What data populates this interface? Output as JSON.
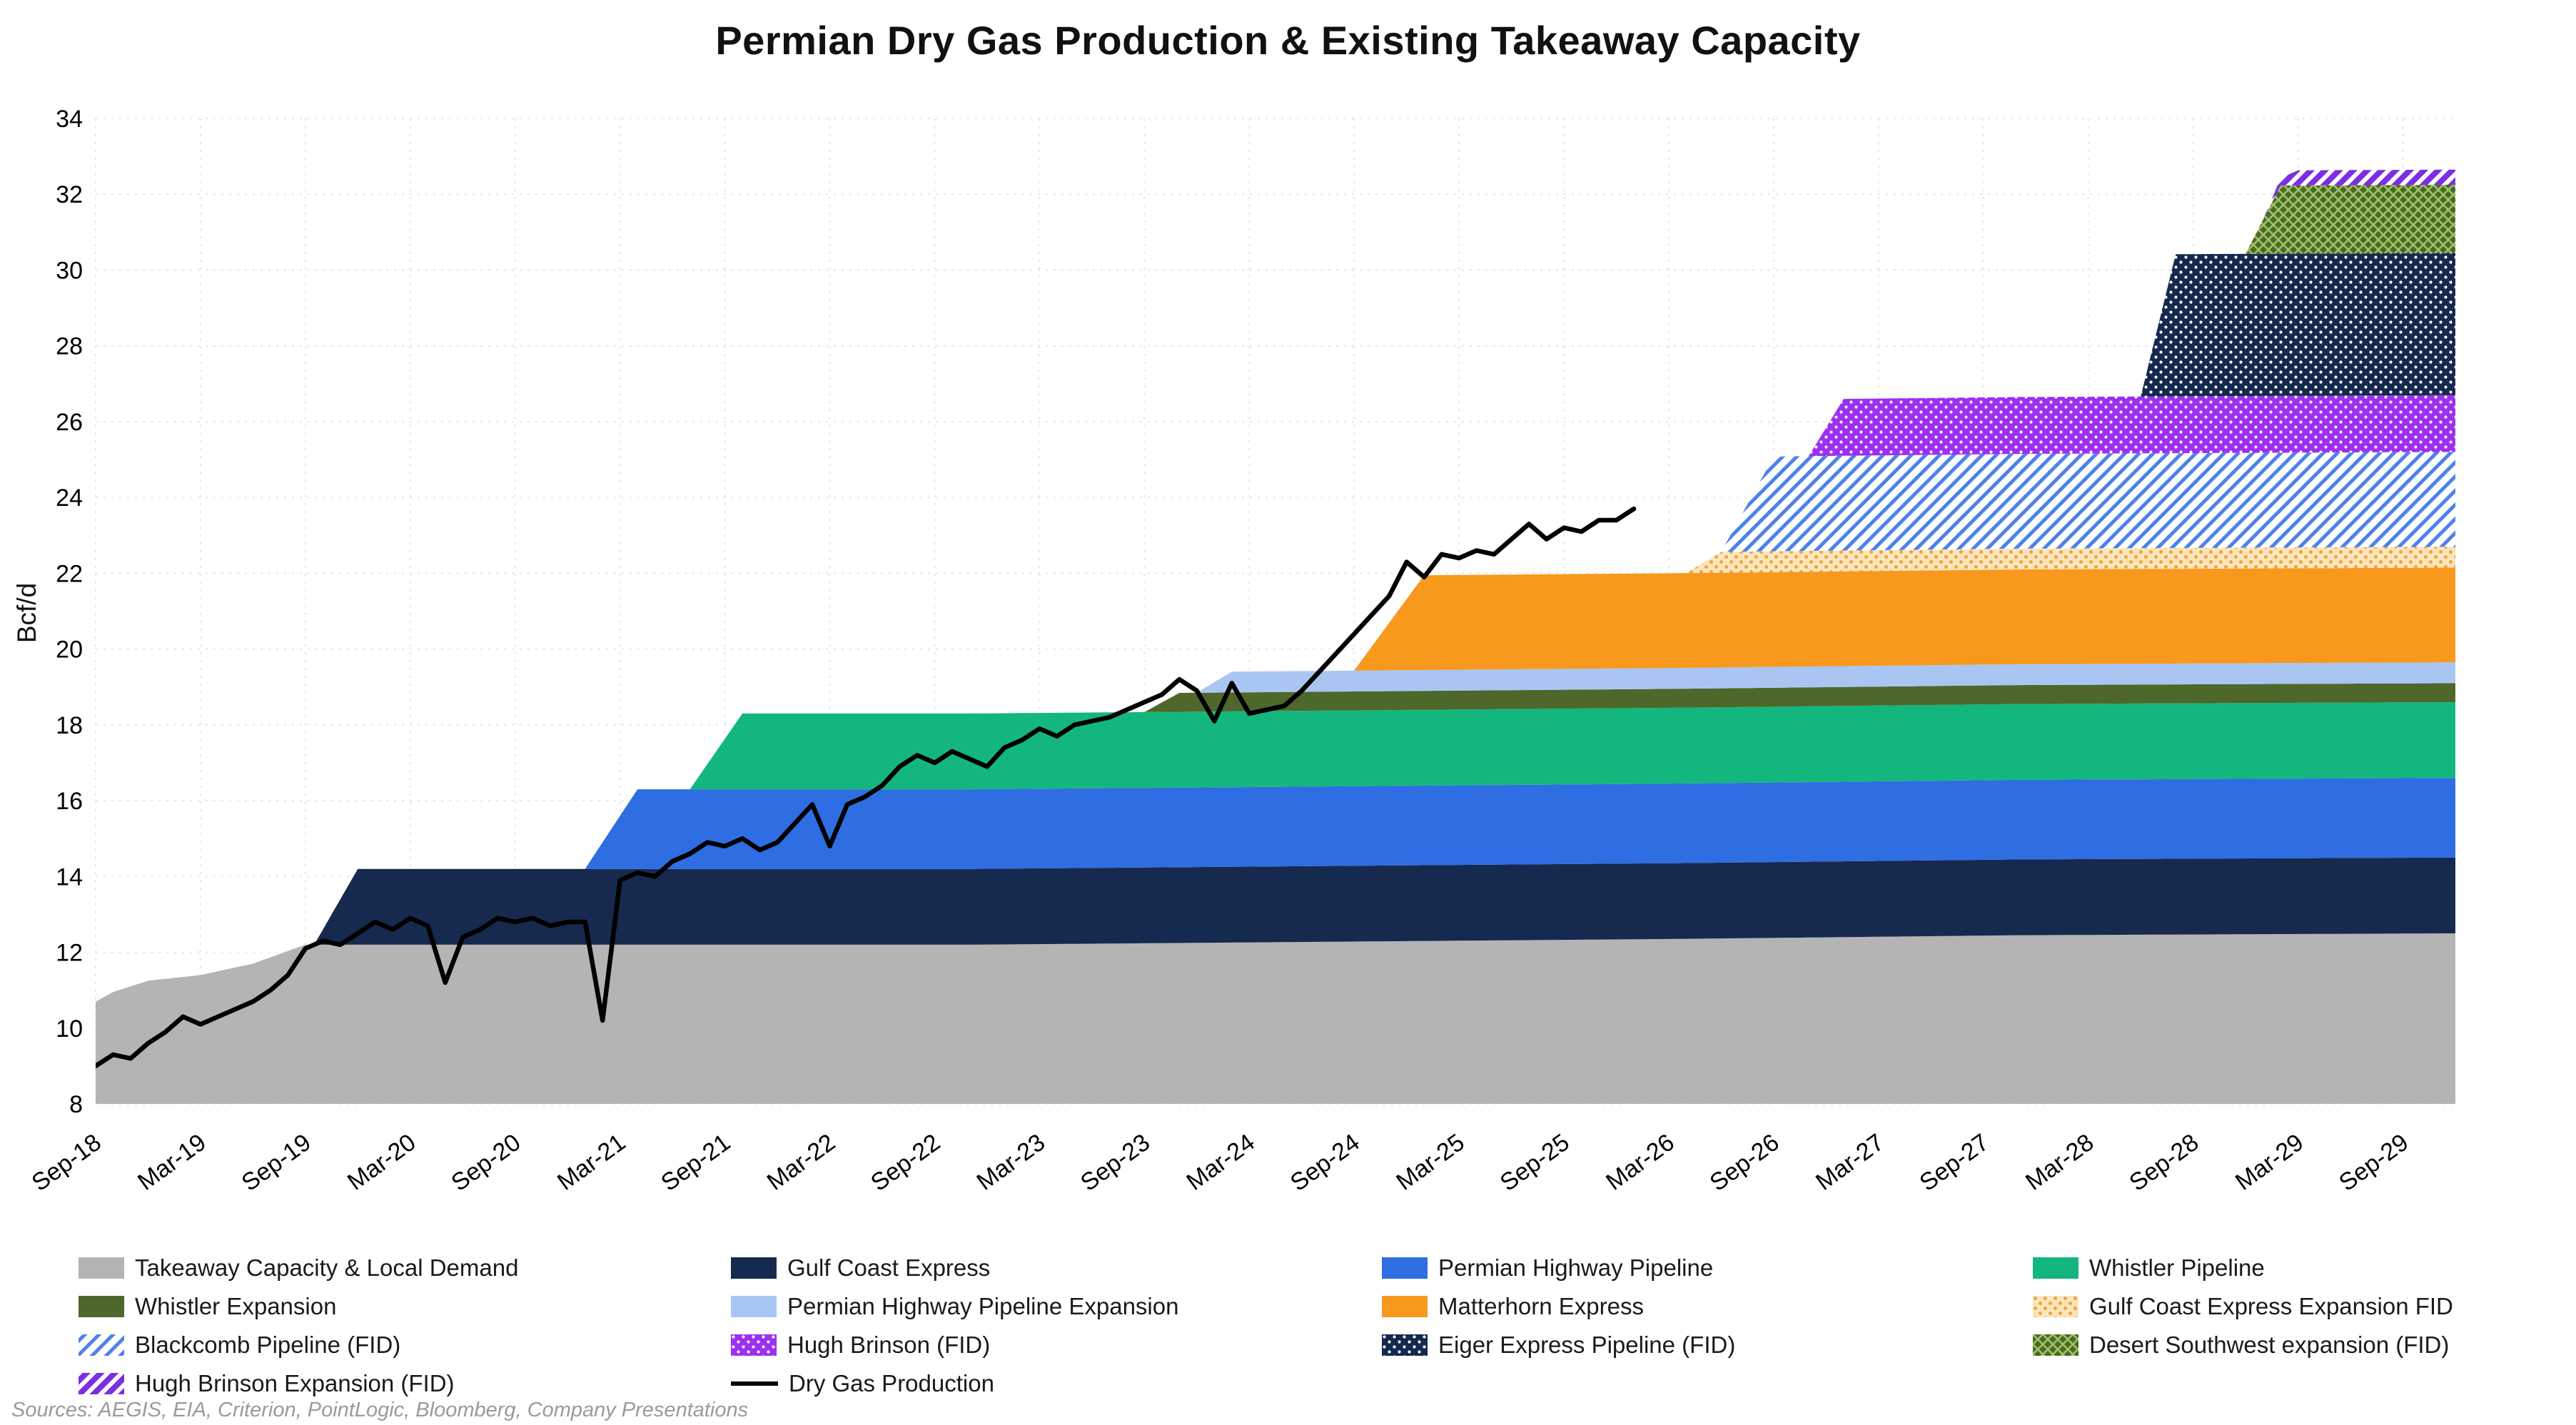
{
  "title": "Permian Dry Gas Production & Existing Takeaway Capacity",
  "source_note": "Sources: AEGIS, EIA, Criterion, PointLogic, Bloomberg, Company Presentations",
  "chart_data": {
    "type": "area",
    "title": "Permian Dry Gas Production & Existing Takeaway Capacity",
    "ylabel": "Bcf/d",
    "ylim": [
      8,
      34
    ],
    "yticks": [
      8,
      10,
      12,
      14,
      16,
      18,
      20,
      22,
      24,
      26,
      28,
      30,
      32,
      34
    ],
    "grid": "dotted",
    "legend_position": "bottom",
    "x_unit": "months since Sep-2018",
    "x_max": 135,
    "xtick_positions": [
      0,
      6,
      12,
      18,
      24,
      30,
      36,
      42,
      48,
      54,
      60,
      66,
      72,
      78,
      84,
      90,
      96,
      102,
      108,
      114,
      120,
      126,
      132
    ],
    "xtick_labels": [
      "Sep-18",
      "Mar-19",
      "Sep-19",
      "Mar-20",
      "Sep-20",
      "Mar-21",
      "Sep-21",
      "Mar-22",
      "Sep-22",
      "Mar-23",
      "Sep-23",
      "Mar-24",
      "Sep-24",
      "Mar-25",
      "Sep-25",
      "Mar-26",
      "Sep-26",
      "Mar-27",
      "Sep-27",
      "Mar-28",
      "Sep-28",
      "Mar-29",
      "Sep-29"
    ],
    "series": [
      {
        "name": "Takeaway Capacity & Local Demand",
        "color": "#b4b4b4",
        "pattern": "solid",
        "breakpoints": [
          [
            0,
            10.7
          ],
          [
            1,
            10.95
          ],
          [
            3,
            11.25
          ],
          [
            6,
            11.4
          ],
          [
            9,
            11.7
          ],
          [
            12,
            12.2
          ],
          [
            50,
            12.2
          ],
          [
            90,
            12.35
          ],
          [
            110,
            12.45
          ],
          [
            135,
            12.5
          ]
        ]
      },
      {
        "name": "Gulf Coast Express",
        "color": "#16294e",
        "pattern": "solid",
        "breakpoints": [
          [
            0,
            0
          ],
          [
            12.5,
            0
          ],
          [
            15,
            2.0
          ],
          [
            135,
            2.0
          ]
        ]
      },
      {
        "name": "Permian Highway Pipeline",
        "color": "#2e6de2",
        "pattern": "solid",
        "breakpoints": [
          [
            0,
            0
          ],
          [
            28,
            0
          ],
          [
            31,
            2.1
          ],
          [
            135,
            2.1
          ]
        ]
      },
      {
        "name": "Whistler Pipeline",
        "color": "#13b77d",
        "pattern": "solid",
        "breakpoints": [
          [
            0,
            0
          ],
          [
            34,
            0
          ],
          [
            37,
            2.0
          ],
          [
            135,
            2.0
          ]
        ]
      },
      {
        "name": "Whistler Expansion",
        "color": "#4e672a",
        "pattern": "solid",
        "breakpoints": [
          [
            0,
            0
          ],
          [
            60,
            0
          ],
          [
            62,
            0.5
          ],
          [
            135,
            0.5
          ]
        ]
      },
      {
        "name": "Permian Highway Pipeline Expansion",
        "color": "#a9c6f3",
        "pattern": "solid",
        "breakpoints": [
          [
            0,
            0
          ],
          [
            63,
            0
          ],
          [
            65,
            0.55
          ],
          [
            135,
            0.55
          ]
        ]
      },
      {
        "name": "Matterhorn Express",
        "color": "#f8981d",
        "pattern": "solid",
        "breakpoints": [
          [
            0,
            0
          ],
          [
            72,
            0
          ],
          [
            76,
            2.5
          ],
          [
            135,
            2.5
          ]
        ]
      },
      {
        "name": "Gulf Coast Express Expansion FID",
        "color": "#efa438",
        "bg": "#fbe5bd",
        "pattern": "dots-light",
        "breakpoints": [
          [
            0,
            0
          ],
          [
            91,
            0
          ],
          [
            93,
            0.55
          ],
          [
            135,
            0.55
          ]
        ]
      },
      {
        "name": "Blackcomb Pipeline (FID)",
        "color": "#4d82e8",
        "bg": "#ffffff",
        "pattern": "hatch",
        "breakpoints": [
          [
            0,
            0
          ],
          [
            93,
            0
          ],
          [
            96,
            2.5
          ],
          [
            135,
            2.5
          ]
        ]
      },
      {
        "name": "Hugh Brinson (FID)",
        "color": "#9d2ff2",
        "pattern": "dots-white",
        "breakpoints": [
          [
            0,
            0
          ],
          [
            98,
            0
          ],
          [
            100,
            1.5
          ],
          [
            135,
            1.5
          ]
        ]
      },
      {
        "name": "Eiger Express Pipeline (FID)",
        "color": "#15294e",
        "pattern": "dots-white",
        "breakpoints": [
          [
            0,
            0
          ],
          [
            117,
            0
          ],
          [
            119,
            3.75
          ],
          [
            135,
            3.75
          ]
        ]
      },
      {
        "name": "Desert Southwest expansion (FID)",
        "color": "#476b22",
        "fg": "#a3c06a",
        "pattern": "crosshatch",
        "breakpoints": [
          [
            0,
            0
          ],
          [
            123,
            0
          ],
          [
            125,
            1.8
          ],
          [
            135,
            1.8
          ]
        ]
      },
      {
        "name": "Hugh Brinson Expansion (FID)",
        "color": "#7b2fe0",
        "bg": "#ffffff",
        "pattern": "hatch-heavy",
        "breakpoints": [
          [
            0,
            0
          ],
          [
            124,
            0
          ],
          [
            126,
            0.4
          ],
          [
            135,
            0.4
          ]
        ]
      }
    ],
    "line": {
      "name": "Dry Gas Production",
      "color": "#000000",
      "start_month": 0,
      "month_step": 1,
      "values": [
        9.0,
        9.3,
        9.2,
        9.6,
        9.9,
        10.3,
        10.1,
        10.3,
        10.5,
        10.7,
        11.0,
        11.4,
        12.1,
        12.3,
        12.2,
        12.5,
        12.8,
        12.6,
        12.9,
        12.7,
        11.2,
        12.4,
        12.6,
        12.9,
        12.8,
        12.9,
        12.7,
        12.8,
        12.8,
        10.2,
        13.9,
        14.1,
        14.0,
        14.4,
        14.6,
        14.9,
        14.8,
        15.0,
        14.7,
        14.9,
        15.4,
        15.9,
        14.8,
        15.9,
        16.1,
        16.4,
        16.9,
        17.2,
        17.0,
        17.3,
        17.1,
        16.9,
        17.4,
        17.6,
        17.9,
        17.7,
        18.0,
        18.1,
        18.2,
        18.4,
        18.6,
        18.8,
        19.2,
        18.9,
        18.1,
        19.1,
        18.3,
        18.4,
        18.5,
        18.9,
        19.4,
        19.9,
        20.4,
        20.9,
        21.4,
        22.3,
        21.9,
        22.5,
        22.4,
        22.6,
        22.5,
        22.9,
        23.3,
        22.9,
        23.2,
        23.1,
        23.4,
        23.4,
        23.7
      ]
    }
  }
}
